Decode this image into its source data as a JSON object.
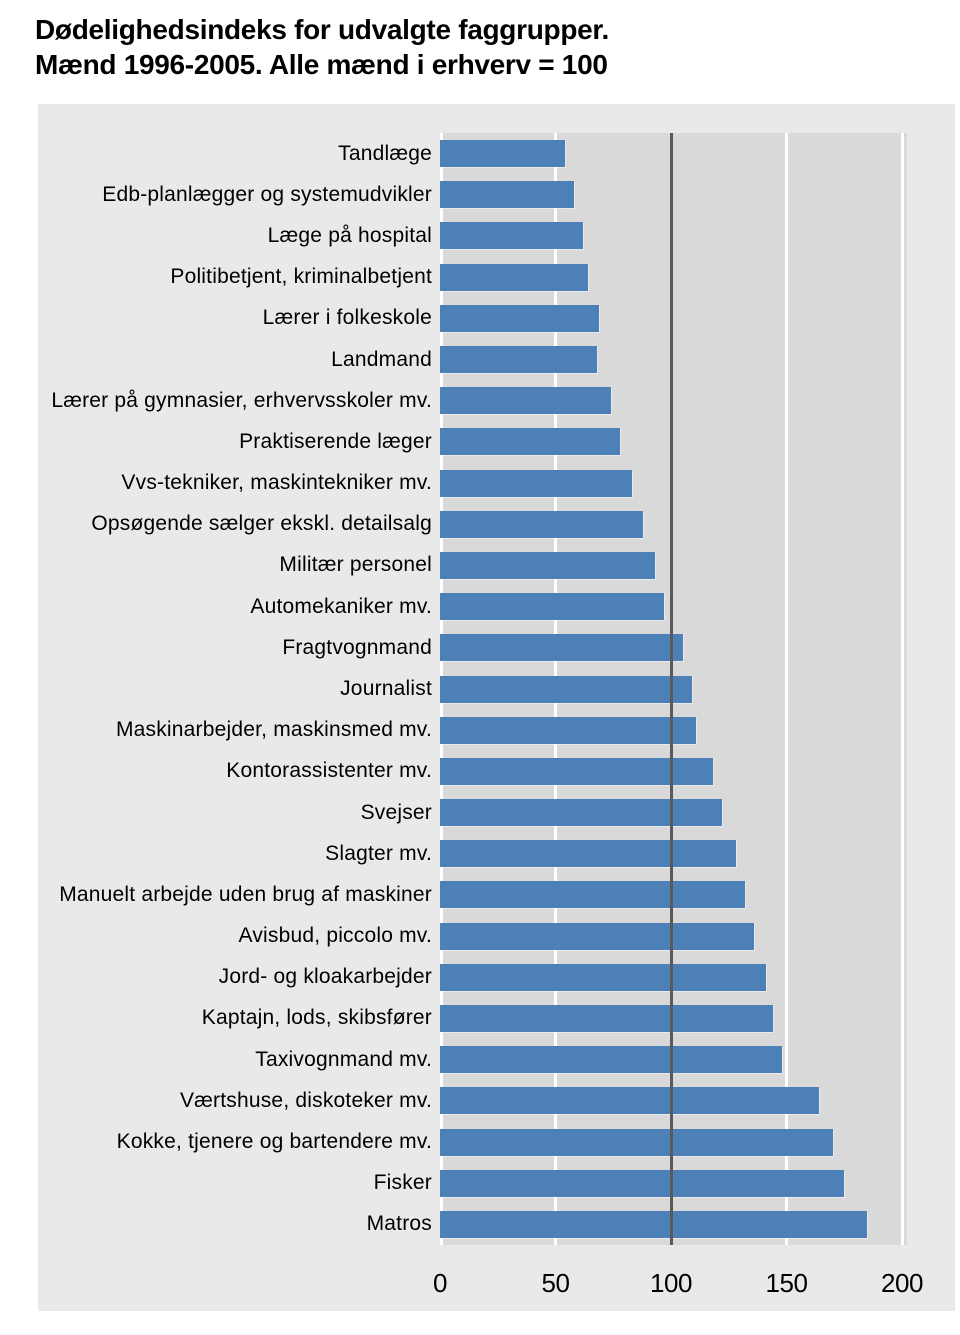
{
  "title": {
    "line1": "Dødelighedsindeks for udvalgte faggrupper.",
    "line2": "Mænd 1996-2005. Alle mænd i erhverv = 100"
  },
  "chart_data": {
    "type": "bar",
    "orientation": "horizontal",
    "title": "Dødelighedsindeks for udvalgte faggrupper. Mænd 1996-2005. Alle mænd i erhverv = 100",
    "xlabel": "",
    "ylabel": "",
    "xlim": [
      0,
      200
    ],
    "x_ticks": [
      0,
      50,
      100,
      150,
      200
    ],
    "reference_line": 100,
    "grid": "vertical gridlines; white at 0/50/150/200 behind bars, dark at 100 in front of bars",
    "legend": "none",
    "categories": [
      "Tandlæge",
      "Edb-planlægger og systemudvikler",
      "Læge på hospital",
      "Politibetjent, kriminalbetjent",
      "Lærer i folkeskole",
      "Landmand",
      "Lærer på gymnasier, erhvervsskoler mv.",
      "Praktiserende læger",
      "Vvs-tekniker, maskintekniker mv.",
      "Opsøgende sælger ekskl. detailsalg",
      "Militær personel",
      "Automekaniker mv.",
      "Fragtvognmand",
      "Journalist",
      "Maskinarbejder, maskinsmed mv.",
      "Kontorassistenter mv.",
      "Svejser",
      "Slagter mv.",
      "Manuelt arbejde uden brug af maskiner",
      "Avisbud, piccolo mv.",
      "Jord- og kloakarbejder",
      "Kaptajn, lods, skibsfører",
      "Taxivognmand mv.",
      "Værtshuse, diskoteker mv.",
      "Kokke, tjenere og bartendere mv.",
      "Fisker",
      "Matros"
    ],
    "values": [
      54,
      58,
      62,
      64,
      69,
      68,
      74,
      78,
      83,
      88,
      93,
      97,
      105,
      109,
      111,
      118,
      122,
      128,
      132,
      136,
      141,
      144,
      148,
      164,
      170,
      175,
      185
    ]
  },
  "colors": {
    "bar": "#4d80b6",
    "plot_background": "#d9d9d9",
    "panel_background": "#e9e9e9",
    "gridline_white": "#ffffff",
    "reference_line": "#5a5a5a",
    "text": "#000000",
    "page_background": "#ffffff"
  }
}
